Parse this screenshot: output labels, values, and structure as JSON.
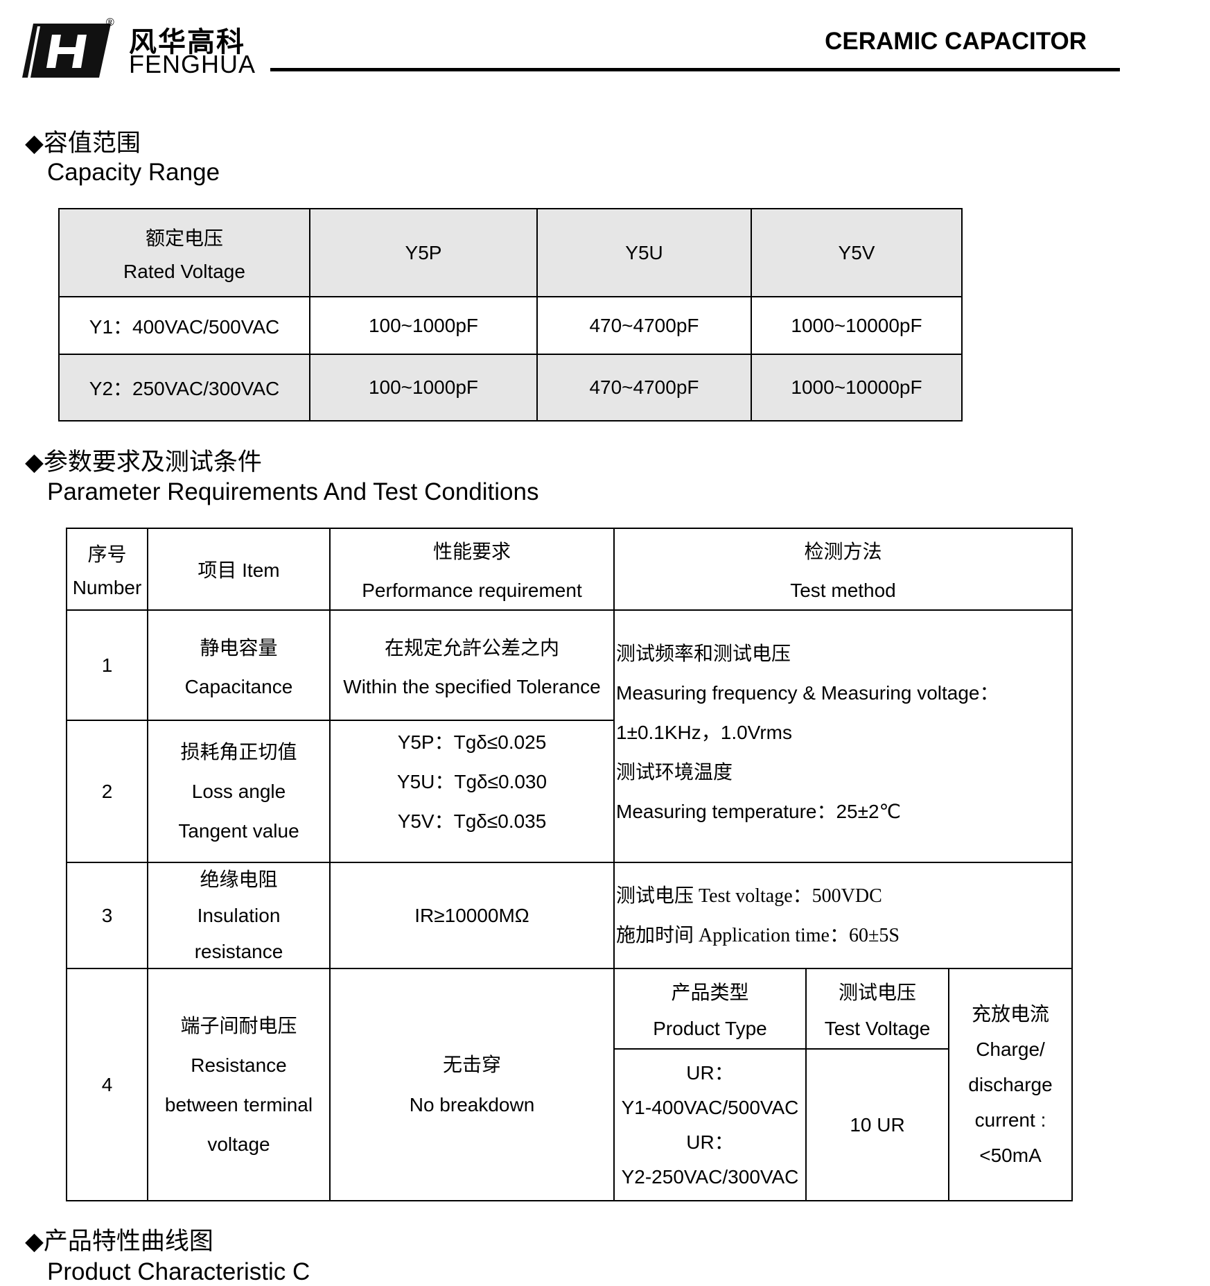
{
  "header": {
    "logo_cn": "风华高科",
    "logo_en": "FENGHUA",
    "registered": "®",
    "title": "CERAMIC CAPACITOR"
  },
  "section1": {
    "bullet": "◆",
    "title_cn": "容值范围",
    "title_en": "Capacity Range",
    "table": {
      "header": {
        "rated_cn": "额定电压",
        "rated_en": "Rated Voltage",
        "cols": [
          "Y5P",
          "Y5U",
          "Y5V"
        ]
      },
      "rows": [
        {
          "voltage": "Y1：400VAC/500VAC",
          "values": [
            "100~1000pF",
            "470~4700pF",
            "1000~10000pF"
          ]
        },
        {
          "voltage": "Y2：250VAC/300VAC",
          "values": [
            "100~1000pF",
            "470~4700pF",
            "1000~10000pF"
          ]
        }
      ]
    }
  },
  "section2": {
    "bullet": "◆",
    "title_cn": "参数要求及测试条件",
    "title_en": "Parameter Requirements And Test Conditions",
    "table": {
      "header": {
        "num_cn": "序号",
        "num_en": "Number",
        "item": "项目 Item",
        "perf_cn": "性能要求",
        "perf_en": "Performance requirement",
        "method_cn": "检测方法",
        "method_en": "Test method"
      },
      "r1": {
        "num": "1",
        "item_cn": "静电容量",
        "item_en": "Capacitance",
        "perf_cn": "在规定允許公差之内",
        "perf_en": "Within the specified Tolerance"
      },
      "r2": {
        "num": "2",
        "item": [
          "损耗角正切值",
          "Loss angle",
          "Tangent value"
        ],
        "perf": [
          "Y5P：Tgδ≤0.025",
          "Y5U：Tgδ≤0.030",
          "Y5V：Tgδ≤0.035"
        ]
      },
      "method12": [
        "测试频率和测试电压",
        "Measuring frequency & Measuring voltage：",
        "1±0.1KHz，1.0Vrms",
        "测试环境温度",
        "Measuring temperature：25±2℃"
      ],
      "r3": {
        "num": "3",
        "item": [
          "绝缘电阻",
          "Insulation",
          "resistance"
        ],
        "perf": "IR≥10000MΩ",
        "method": [
          "测试电压 Test voltage：500VDC",
          "施加时间 Application time：60±5S"
        ]
      },
      "r4": {
        "num": "4",
        "item": [
          "端子间耐电压",
          "Resistance",
          "between terminal",
          "voltage"
        ],
        "perf_cn": "无击穿",
        "perf_en": "No breakdown",
        "ptype_cn": "产品类型",
        "ptype_en": "Product Type",
        "tv_cn": "测试电压",
        "tv_en": "Test Voltage",
        "current": [
          "充放电流",
          "Charge/",
          "discharge",
          "current :",
          "<50mA"
        ],
        "types": [
          "UR：",
          "Y1-400VAC/500VAC",
          "UR：",
          "Y2-250VAC/300VAC"
        ],
        "tv_value": "10 UR"
      }
    }
  },
  "section3": {
    "bullet": "◆",
    "title_cn": "产品特性曲线图",
    "title_en": "Product Characteristic C"
  }
}
